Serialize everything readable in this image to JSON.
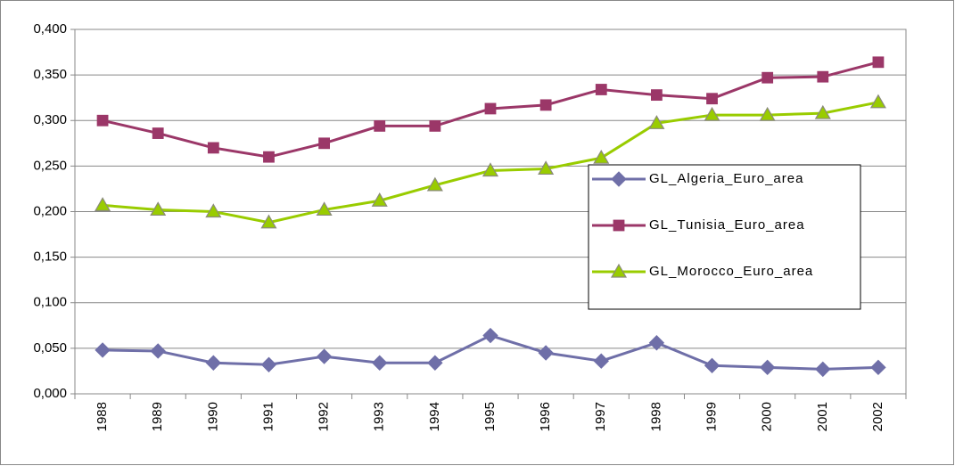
{
  "chart_data": {
    "type": "line",
    "categories": [
      "1988",
      "1989",
      "1990",
      "1991",
      "1992",
      "1993",
      "1994",
      "1995",
      "1996",
      "1997",
      "1998",
      "1999",
      "2000",
      "2001",
      "2002"
    ],
    "series": [
      {
        "name": "GL_Algeria_Euro_area",
        "color": "#6f6fa8",
        "marker": "diamond",
        "values": [
          0.048,
          0.047,
          0.034,
          0.032,
          0.041,
          0.034,
          0.034,
          0.064,
          0.045,
          0.036,
          0.056,
          0.031,
          0.029,
          0.027,
          0.029
        ]
      },
      {
        "name": "GL_Tunisia_Euro_area",
        "color": "#9b3768",
        "marker": "square",
        "values": [
          0.3,
          0.286,
          0.27,
          0.26,
          0.275,
          0.294,
          0.294,
          0.313,
          0.317,
          0.334,
          0.328,
          0.324,
          0.347,
          0.348,
          0.364
        ]
      },
      {
        "name": "GL_Morocco_Euro_area",
        "color": "#99cc00",
        "marker": "triangle",
        "values": [
          0.207,
          0.202,
          0.2,
          0.188,
          0.202,
          0.212,
          0.229,
          0.245,
          0.247,
          0.259,
          0.297,
          0.306,
          0.306,
          0.308,
          0.32
        ]
      }
    ],
    "ylim": [
      0,
      0.4
    ],
    "yticks": [
      {
        "value": 0,
        "label": "0,000"
      },
      {
        "value": 0.05,
        "label": "0,050"
      },
      {
        "value": 0.1,
        "label": "0,100"
      },
      {
        "value": 0.15,
        "label": "0,150"
      },
      {
        "value": 0.2,
        "label": "0,200"
      },
      {
        "value": 0.25,
        "label": "0,250"
      },
      {
        "value": 0.3,
        "label": "0,300"
      },
      {
        "value": 0.35,
        "label": "0,350"
      },
      {
        "value": 0.4,
        "label": "0,400"
      }
    ],
    "grid": true,
    "legend": "center-right"
  }
}
